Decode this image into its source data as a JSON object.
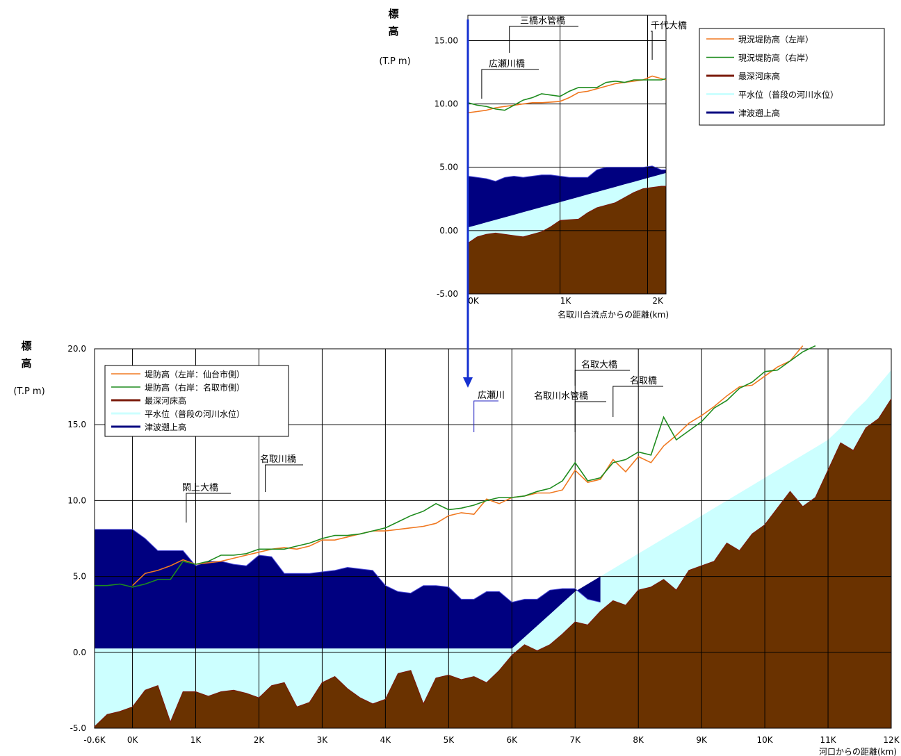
{
  "colors": {
    "left_bank": "#f07820",
    "right_bank": "#1e8c1e",
    "riverbed_line": "#7a1a0a",
    "riverbed_fill": "#6a3200",
    "normal_water": "#ccffff",
    "tsunami": "#000080",
    "arrow": "#1530d0",
    "grid": "#000000"
  },
  "chart_data": [
    {
      "type": "area",
      "ylabel_chars": [
        "標",
        "高"
      ],
      "yunit": "(T.P m)",
      "xlabel": "名取川合流点からの距離(km)",
      "xlim": [
        0,
        2.15
      ],
      "ylim": [
        -5,
        17
      ],
      "yticks": [
        -5,
        0,
        5,
        10,
        15
      ],
      "ytick_labels": [
        "-5.00",
        "0.00",
        "5.00",
        "10.00",
        "15.00"
      ],
      "xticks": [
        0,
        1,
        2
      ],
      "xtick_labels": [
        "0K",
        "1K",
        "2K"
      ],
      "grid": true,
      "legend_position": "top-right",
      "legend": [
        "現況堤防高（左岸）",
        "現況堤防高（右岸）",
        "最深河床高",
        "平水位（普段の河川水位）",
        "津波遡上高"
      ],
      "landmarks": [
        {
          "label": "三橋水管橋",
          "x": 0.45
        },
        {
          "label": "千代大橋",
          "x": 2.0
        },
        {
          "label": "広瀬川橋",
          "x": 0.15
        }
      ],
      "x": [
        0,
        0.1,
        0.2,
        0.3,
        0.4,
        0.5,
        0.6,
        0.7,
        0.8,
        0.9,
        1.0,
        1.1,
        1.2,
        1.3,
        1.4,
        1.5,
        1.6,
        1.7,
        1.8,
        1.9,
        2.0,
        2.1,
        2.15
      ],
      "series": [
        {
          "name": "現況堤防高（左岸）",
          "values": [
            9.3,
            9.4,
            9.5,
            9.7,
            9.8,
            9.9,
            10.0,
            10.1,
            10.1,
            10.15,
            10.2,
            10.5,
            10.9,
            11.0,
            11.2,
            11.4,
            11.6,
            11.7,
            11.8,
            11.9,
            12.2,
            12.0,
            11.9
          ]
        },
        {
          "name": "現況堤防高（右岸）",
          "values": [
            10.1,
            9.9,
            9.8,
            9.6,
            9.5,
            9.9,
            10.3,
            10.5,
            10.8,
            10.7,
            10.6,
            11.0,
            11.3,
            11.3,
            11.3,
            11.7,
            11.8,
            11.7,
            11.9,
            11.9,
            11.9,
            11.9,
            12.0
          ]
        },
        {
          "name": "最深河床高",
          "values": [
            -1.0,
            -0.5,
            -0.3,
            -0.2,
            -0.3,
            -0.4,
            -0.5,
            -0.3,
            -0.1,
            0.3,
            0.8,
            0.85,
            0.9,
            1.4,
            1.8,
            2.0,
            2.2,
            2.6,
            3.0,
            3.3,
            3.4,
            3.5,
            3.5
          ]
        },
        {
          "name": "平水位（普段の河川水位）",
          "values": [
            0.25,
            0.45,
            0.65,
            0.85,
            1.05,
            1.25,
            1.45,
            1.65,
            1.85,
            2.05,
            2.25,
            2.45,
            2.65,
            2.85,
            3.05,
            3.25,
            3.45,
            3.65,
            3.85,
            4.05,
            4.25,
            4.45,
            4.55
          ]
        },
        {
          "name": "津波遡上高",
          "values": [
            4.3,
            4.2,
            4.1,
            3.9,
            4.2,
            4.3,
            4.2,
            4.3,
            4.4,
            4.4,
            4.3,
            4.2,
            4.2,
            4.2,
            4.8,
            5.0,
            5.0,
            5.0,
            5.0,
            5.0,
            5.1,
            4.8,
            4.8
          ]
        }
      ]
    },
    {
      "type": "area",
      "ylabel_chars": [
        "標",
        "高"
      ],
      "yunit": "(T.P m)",
      "xlabel": "河口からの距離(km)",
      "xlim": [
        -0.6,
        12
      ],
      "ylim": [
        -5,
        20
      ],
      "yticks": [
        -5,
        0,
        5,
        10,
        15,
        20
      ],
      "ytick_labels": [
        "-5.0",
        "0.0",
        "5.0",
        "10.0",
        "15.0",
        "20.0"
      ],
      "xticks": [
        -0.6,
        0,
        1,
        2,
        3,
        4,
        5,
        6,
        7,
        8,
        9,
        10,
        11,
        12
      ],
      "xtick_labels": [
        "-0.6K",
        "0K",
        "1K",
        "2K",
        "3K",
        "4K",
        "5K",
        "6K",
        "7K",
        "8K",
        "9K",
        "10K",
        "11K",
        "12K"
      ],
      "grid": true,
      "legend_position": "top-left",
      "legend": [
        "堤防高（左岸：仙台市側）",
        "堤防高（右岸：名取市側）",
        "最深河床高",
        "平水位（普段の河川水位）",
        "津波遡上高"
      ],
      "landmarks": [
        {
          "label": "閖上大橋",
          "x": 0.85
        },
        {
          "label": "名取川橋",
          "x": 2.1
        },
        {
          "label": "広瀬川",
          "x": 5.4
        },
        {
          "label": "名取川水管橋",
          "x": 7.0
        },
        {
          "label": "名取大橋",
          "x": 7.0
        },
        {
          "label": "名取橋",
          "x": 7.6
        }
      ],
      "x": [
        -0.6,
        -0.4,
        -0.2,
        0,
        0.2,
        0.4,
        0.6,
        0.8,
        1.0,
        1.2,
        1.4,
        1.6,
        1.8,
        2.0,
        2.2,
        2.4,
        2.6,
        2.8,
        3.0,
        3.2,
        3.4,
        3.6,
        3.8,
        4.0,
        4.2,
        4.4,
        4.6,
        4.8,
        5.0,
        5.2,
        5.4,
        5.6,
        5.8,
        6.0,
        6.2,
        6.4,
        6.6,
        6.8,
        7.0,
        7.2,
        7.4,
        7.6,
        7.8,
        8.0,
        8.2,
        8.4,
        8.6,
        8.8,
        9.0,
        9.2,
        9.4,
        9.6,
        9.8,
        10.0,
        10.2,
        10.4,
        10.6,
        10.8,
        11.0,
        11.2,
        11.4,
        11.6,
        11.8,
        12.0
      ],
      "series": [
        {
          "name": "堤防高（左岸：仙台市側）",
          "values": [
            null,
            null,
            null,
            4.4,
            5.2,
            5.4,
            5.7,
            6.1,
            5.8,
            5.9,
            6.0,
            6.2,
            6.4,
            6.6,
            6.8,
            6.9,
            6.8,
            7.0,
            7.4,
            7.4,
            7.6,
            7.8,
            8.0,
            8.0,
            8.1,
            8.2,
            8.3,
            8.5,
            9.0,
            9.2,
            9.1,
            10.1,
            9.8,
            10.2,
            10.3,
            10.5,
            10.5,
            10.7,
            12.0,
            11.2,
            11.4,
            12.7,
            11.9,
            12.9,
            12.5,
            13.6,
            14.3,
            15.1,
            15.6,
            16.2,
            16.9,
            17.5,
            17.6,
            18.2,
            18.8,
            19.2,
            20.2,
            null,
            null,
            null,
            null,
            null,
            null,
            null
          ]
        },
        {
          "name": "堤防高（右岸：名取市側）",
          "values": [
            4.4,
            4.4,
            4.5,
            4.3,
            4.5,
            4.8,
            4.8,
            6.0,
            5.8,
            6.0,
            6.4,
            6.4,
            6.5,
            6.8,
            6.8,
            6.8,
            7.0,
            7.2,
            7.5,
            7.7,
            7.7,
            7.8,
            8.0,
            8.2,
            8.6,
            9.0,
            9.3,
            9.8,
            9.4,
            9.5,
            9.7,
            10.0,
            10.2,
            10.2,
            10.3,
            10.6,
            10.8,
            11.3,
            12.5,
            11.3,
            11.5,
            12.5,
            12.7,
            13.2,
            13.0,
            15.5,
            14.0,
            14.6,
            15.2,
            16.1,
            16.6,
            17.4,
            17.8,
            18.5,
            18.6,
            19.2,
            19.8,
            20.2,
            null,
            null,
            null,
            null,
            null,
            null
          ]
        },
        {
          "name": "最深河床高",
          "values": [
            -4.9,
            -4.1,
            -3.9,
            -3.6,
            -2.5,
            -2.2,
            -4.6,
            -2.6,
            -2.6,
            -2.9,
            -2.6,
            -2.5,
            -2.7,
            -3.0,
            -2.2,
            -2.0,
            -3.6,
            -3.3,
            -2.0,
            -1.6,
            -2.4,
            -3.0,
            -3.4,
            -3.1,
            -1.4,
            -1.2,
            -3.4,
            -1.7,
            -1.5,
            -1.8,
            -1.6,
            -2.0,
            -1.2,
            -0.2,
            0.5,
            0.1,
            0.5,
            1.2,
            2.0,
            1.8,
            2.7,
            3.4,
            3.1,
            4.1,
            4.3,
            4.8,
            4.1,
            5.4,
            5.7,
            6.0,
            7.2,
            6.7,
            7.8,
            8.4,
            9.5,
            10.6,
            9.6,
            10.2,
            12.0,
            13.8,
            13.3,
            14.8,
            15.4,
            16.7
          ]
        },
        {
          "name": "平水位（普段の河川水位）",
          "values": [
            0.25,
            0.25,
            0.25,
            0.25,
            0.25,
            0.25,
            0.25,
            0.25,
            0.25,
            0.25,
            0.25,
            0.25,
            0.25,
            0.25,
            0.25,
            0.25,
            0.25,
            0.25,
            0.25,
            0.25,
            0.25,
            0.25,
            0.25,
            0.25,
            0.25,
            0.25,
            0.25,
            0.25,
            0.25,
            0.25,
            0.25,
            0.25,
            0.25,
            0.25,
            1.0,
            1.75,
            2.5,
            3.25,
            4.0,
            4.5,
            5.0,
            5.5,
            6.0,
            6.5,
            7.0,
            7.5,
            8.0,
            8.5,
            9.0,
            9.5,
            10.0,
            10.5,
            11.0,
            11.5,
            12.0,
            12.5,
            13.0,
            13.5,
            14.0,
            14.8,
            15.8,
            16.6,
            17.6,
            18.6
          ]
        },
        {
          "name": "津波遡上高",
          "values": [
            8.1,
            8.1,
            8.1,
            8.1,
            7.5,
            6.7,
            6.7,
            6.7,
            5.7,
            6.0,
            6.0,
            5.8,
            5.7,
            6.4,
            6.3,
            5.2,
            5.2,
            5.2,
            5.3,
            5.4,
            5.6,
            5.5,
            5.4,
            4.4,
            4.0,
            3.9,
            4.4,
            4.4,
            4.3,
            3.5,
            3.5,
            4.0,
            4.0,
            3.3,
            3.5,
            3.5,
            4.1,
            4.2,
            4.2,
            3.5,
            3.3,
            null,
            null,
            null,
            null,
            null,
            null,
            null,
            null,
            null,
            null,
            null,
            null,
            null,
            null,
            null,
            null,
            null,
            null,
            null,
            null,
            null,
            null,
            null
          ]
        }
      ]
    }
  ]
}
